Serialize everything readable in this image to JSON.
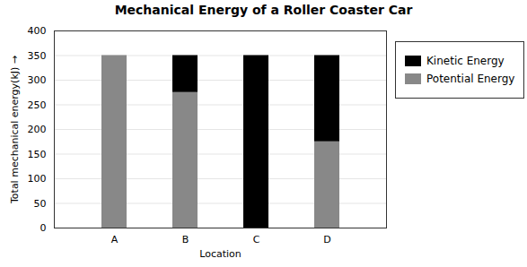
{
  "chart_data": {
    "type": "bar",
    "stacked": true,
    "title": "Mechanical Energy of a Roller Coaster Car",
    "xlabel": "Location",
    "ylabel": "Total mechanical energy(kJ)",
    "categories": [
      "A",
      "B",
      "C",
      "D"
    ],
    "series": [
      {
        "name": "Potential Energy",
        "color": "#888888",
        "values": [
          350,
          275,
          0,
          175
        ]
      },
      {
        "name": "Kinetic Energy",
        "color": "#000000",
        "values": [
          0,
          75,
          350,
          175
        ]
      }
    ],
    "ylim": [
      0,
      400
    ],
    "yticks": [
      0,
      50,
      100,
      150,
      200,
      250,
      300,
      350,
      400
    ],
    "grid": true,
    "legend": "right"
  }
}
